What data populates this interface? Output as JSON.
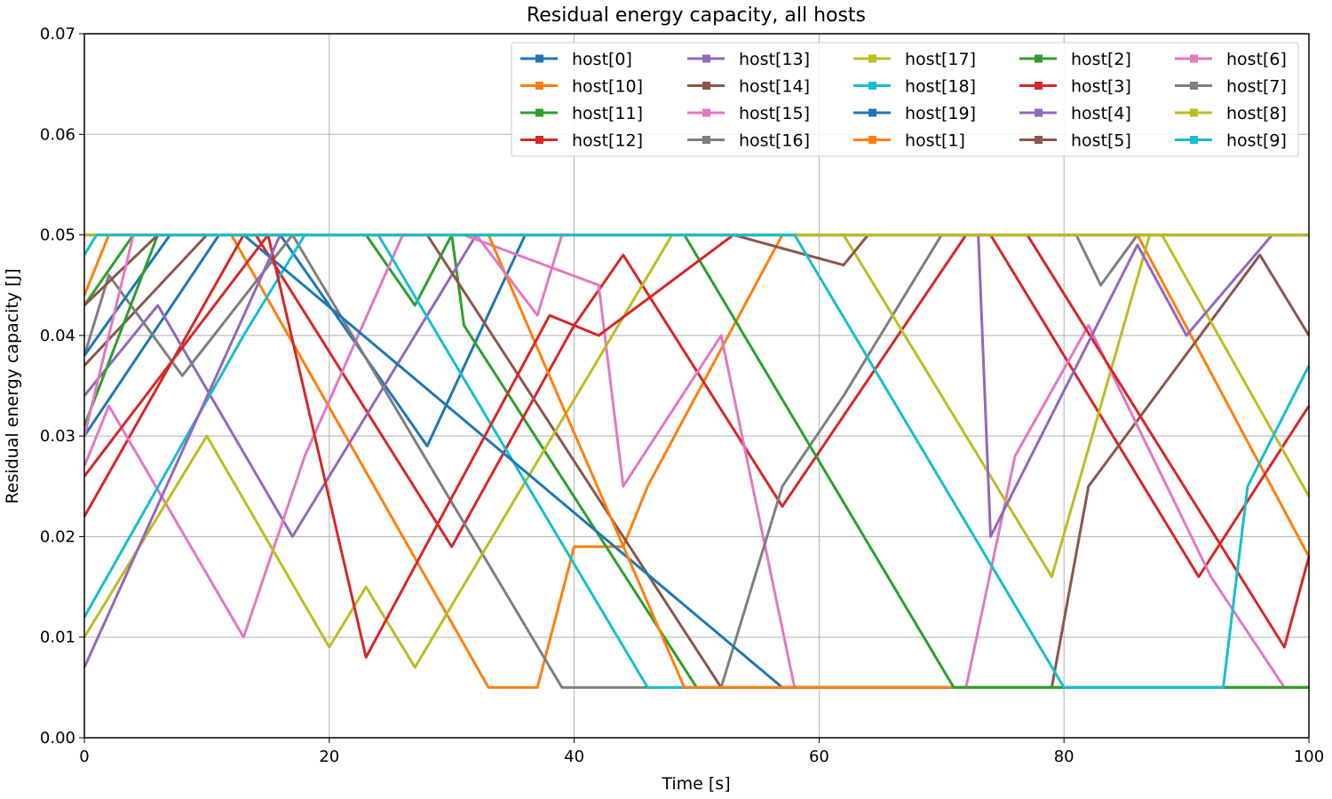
{
  "chart_data": {
    "type": "line",
    "title": "Residual energy capacity, all hosts",
    "xlabel": "Time [s]",
    "ylabel": "Residual energy capacity [J]",
    "xlim": [
      0,
      100
    ],
    "ylim": [
      0,
      0.07
    ],
    "xticks": [
      0,
      20,
      40,
      60,
      80,
      100
    ],
    "yticks": [
      0.0,
      0.01,
      0.02,
      0.03,
      0.04,
      0.05,
      0.06,
      0.07
    ],
    "xtick_labels": [
      "0",
      "20",
      "40",
      "60",
      "80",
      "100"
    ],
    "ytick_labels": [
      "0.00",
      "0.01",
      "0.02",
      "0.03",
      "0.04",
      "0.05",
      "0.06",
      "0.07"
    ],
    "grid": true,
    "legend": {
      "position": "top-right",
      "columns": 5
    },
    "series": [
      {
        "name": "host[0]",
        "color": "#1f77b4",
        "points": [
          [
            0,
            0.03
          ],
          [
            11,
            0.05
          ],
          [
            16,
            0.05
          ],
          [
            28,
            0.029
          ],
          [
            36,
            0.05
          ],
          [
            100,
            0.05
          ]
        ]
      },
      {
        "name": "host[10]",
        "color": "#ff7f0e",
        "points": [
          [
            0,
            0.044
          ],
          [
            2,
            0.05
          ],
          [
            12,
            0.05
          ],
          [
            33,
            0.005
          ],
          [
            37,
            0.005
          ],
          [
            40,
            0.019
          ],
          [
            44,
            0.019
          ],
          [
            46,
            0.025
          ],
          [
            57,
            0.05
          ],
          [
            86,
            0.05
          ],
          [
            100,
            0.018
          ]
        ]
      },
      {
        "name": "host[11]",
        "color": "#2ca02c",
        "points": [
          [
            0,
            0.043
          ],
          [
            4,
            0.05
          ],
          [
            23,
            0.05
          ],
          [
            27,
            0.043
          ],
          [
            30,
            0.05
          ],
          [
            31,
            0.041
          ],
          [
            50,
            0.005
          ],
          [
            100,
            0.005
          ]
        ]
      },
      {
        "name": "host[12]",
        "color": "#d62728",
        "points": [
          [
            0,
            0.022
          ],
          [
            13,
            0.05
          ],
          [
            14,
            0.05
          ],
          [
            30,
            0.019
          ],
          [
            40,
            0.041
          ],
          [
            44,
            0.048
          ],
          [
            57,
            0.023
          ],
          [
            72,
            0.05
          ],
          [
            74,
            0.05
          ],
          [
            91,
            0.016
          ],
          [
            100,
            0.033
          ]
        ]
      },
      {
        "name": "host[13]",
        "color": "#9467bd",
        "points": [
          [
            0,
            0.034
          ],
          [
            6,
            0.043
          ],
          [
            17,
            0.02
          ],
          [
            32,
            0.05
          ],
          [
            100,
            0.05
          ]
        ]
      },
      {
        "name": "host[14]",
        "color": "#8c564b",
        "points": [
          [
            0,
            0.037
          ],
          [
            10,
            0.05
          ],
          [
            28,
            0.05
          ],
          [
            52,
            0.005
          ],
          [
            79,
            0.005
          ],
          [
            82,
            0.025
          ],
          [
            96,
            0.048
          ],
          [
            100,
            0.04
          ]
        ]
      },
      {
        "name": "host[15]",
        "color": "#e377c2",
        "points": [
          [
            0,
            0.027
          ],
          [
            2,
            0.033
          ],
          [
            13,
            0.01
          ],
          [
            18,
            0.028
          ],
          [
            26,
            0.05
          ],
          [
            31,
            0.05
          ],
          [
            42,
            0.045
          ],
          [
            44,
            0.025
          ],
          [
            52,
            0.04
          ],
          [
            58,
            0.005
          ],
          [
            72,
            0.005
          ],
          [
            76,
            0.028
          ],
          [
            82,
            0.041
          ],
          [
            92,
            0.016
          ],
          [
            98,
            0.005
          ]
        ]
      },
      {
        "name": "host[16]",
        "color": "#7f7f7f",
        "points": [
          [
            0,
            0.038
          ],
          [
            2,
            0.046
          ],
          [
            8,
            0.036
          ],
          [
            17,
            0.05
          ],
          [
            39,
            0.005
          ],
          [
            52,
            0.005
          ],
          [
            57,
            0.025
          ],
          [
            62,
            0.034
          ],
          [
            70,
            0.05
          ],
          [
            81,
            0.05
          ],
          [
            83,
            0.045
          ],
          [
            86,
            0.05
          ],
          [
            100,
            0.05
          ]
        ]
      },
      {
        "name": "host[17]",
        "color": "#bcbd22",
        "points": [
          [
            0,
            0.01
          ],
          [
            10,
            0.03
          ],
          [
            20,
            0.009
          ],
          [
            23,
            0.015
          ],
          [
            27,
            0.007
          ],
          [
            48,
            0.05
          ],
          [
            62,
            0.05
          ],
          [
            79,
            0.016
          ],
          [
            87,
            0.05
          ],
          [
            88,
            0.05
          ],
          [
            100,
            0.024
          ]
        ]
      },
      {
        "name": "host[18]",
        "color": "#17becf",
        "points": [
          [
            0,
            0.012
          ],
          [
            13,
            0.04
          ],
          [
            18,
            0.05
          ],
          [
            24,
            0.05
          ],
          [
            46,
            0.005
          ],
          [
            100,
            0.005
          ]
        ]
      },
      {
        "name": "host[19]",
        "color": "#1f77b4",
        "points": [
          [
            0,
            0.038
          ],
          [
            7,
            0.05
          ],
          [
            13,
            0.05
          ],
          [
            57,
            0.005
          ],
          [
            100,
            0.005
          ]
        ]
      },
      {
        "name": "host[1]",
        "color": "#ff7f0e",
        "points": [
          [
            0,
            0.05
          ],
          [
            33,
            0.05
          ],
          [
            49,
            0.005
          ],
          [
            100,
            0.005
          ]
        ]
      },
      {
        "name": "host[2]",
        "color": "#2ca02c",
        "points": [
          [
            0,
            0.031
          ],
          [
            6,
            0.05
          ],
          [
            45,
            0.05
          ],
          [
            47,
            0.05
          ],
          [
            49,
            0.05
          ],
          [
            71,
            0.005
          ],
          [
            100,
            0.005
          ]
        ]
      },
      {
        "name": "host[3]",
        "color": "#d62728",
        "points": [
          [
            0,
            0.026
          ],
          [
            15,
            0.05
          ],
          [
            23,
            0.008
          ],
          [
            38,
            0.042
          ],
          [
            42,
            0.04
          ],
          [
            53,
            0.05
          ],
          [
            77,
            0.05
          ],
          [
            98,
            0.009
          ],
          [
            100,
            0.018
          ]
        ]
      },
      {
        "name": "host[4]",
        "color": "#9467bd",
        "points": [
          [
            0,
            0.007
          ],
          [
            16,
            0.05
          ],
          [
            73,
            0.05
          ],
          [
            74,
            0.02
          ],
          [
            86,
            0.049
          ],
          [
            90,
            0.04
          ],
          [
            97,
            0.05
          ],
          [
            100,
            0.05
          ]
        ]
      },
      {
        "name": "host[5]",
        "color": "#8c564b",
        "points": [
          [
            0,
            0.043
          ],
          [
            6,
            0.05
          ],
          [
            53,
            0.05
          ],
          [
            62,
            0.047
          ],
          [
            64,
            0.05
          ],
          [
            100,
            0.05
          ]
        ]
      },
      {
        "name": "host[6]",
        "color": "#e377c2",
        "points": [
          [
            0,
            0.03
          ],
          [
            4,
            0.05
          ],
          [
            32,
            0.05
          ],
          [
            37,
            0.042
          ],
          [
            39,
            0.05
          ],
          [
            80,
            0.05
          ],
          [
            86,
            0.05
          ]
        ]
      },
      {
        "name": "host[7]",
        "color": "#7f7f7f",
        "points": [
          [
            0,
            0.05
          ],
          [
            100,
            0.05
          ]
        ]
      },
      {
        "name": "host[8]",
        "color": "#bcbd22",
        "points": [
          [
            0,
            0.05
          ],
          [
            100,
            0.05
          ]
        ]
      },
      {
        "name": "host[9]",
        "color": "#17becf",
        "points": [
          [
            0,
            0.048
          ],
          [
            1,
            0.05
          ],
          [
            58,
            0.05
          ],
          [
            80,
            0.005
          ],
          [
            93,
            0.005
          ],
          [
            95,
            0.025
          ],
          [
            100,
            0.037
          ]
        ]
      }
    ]
  }
}
